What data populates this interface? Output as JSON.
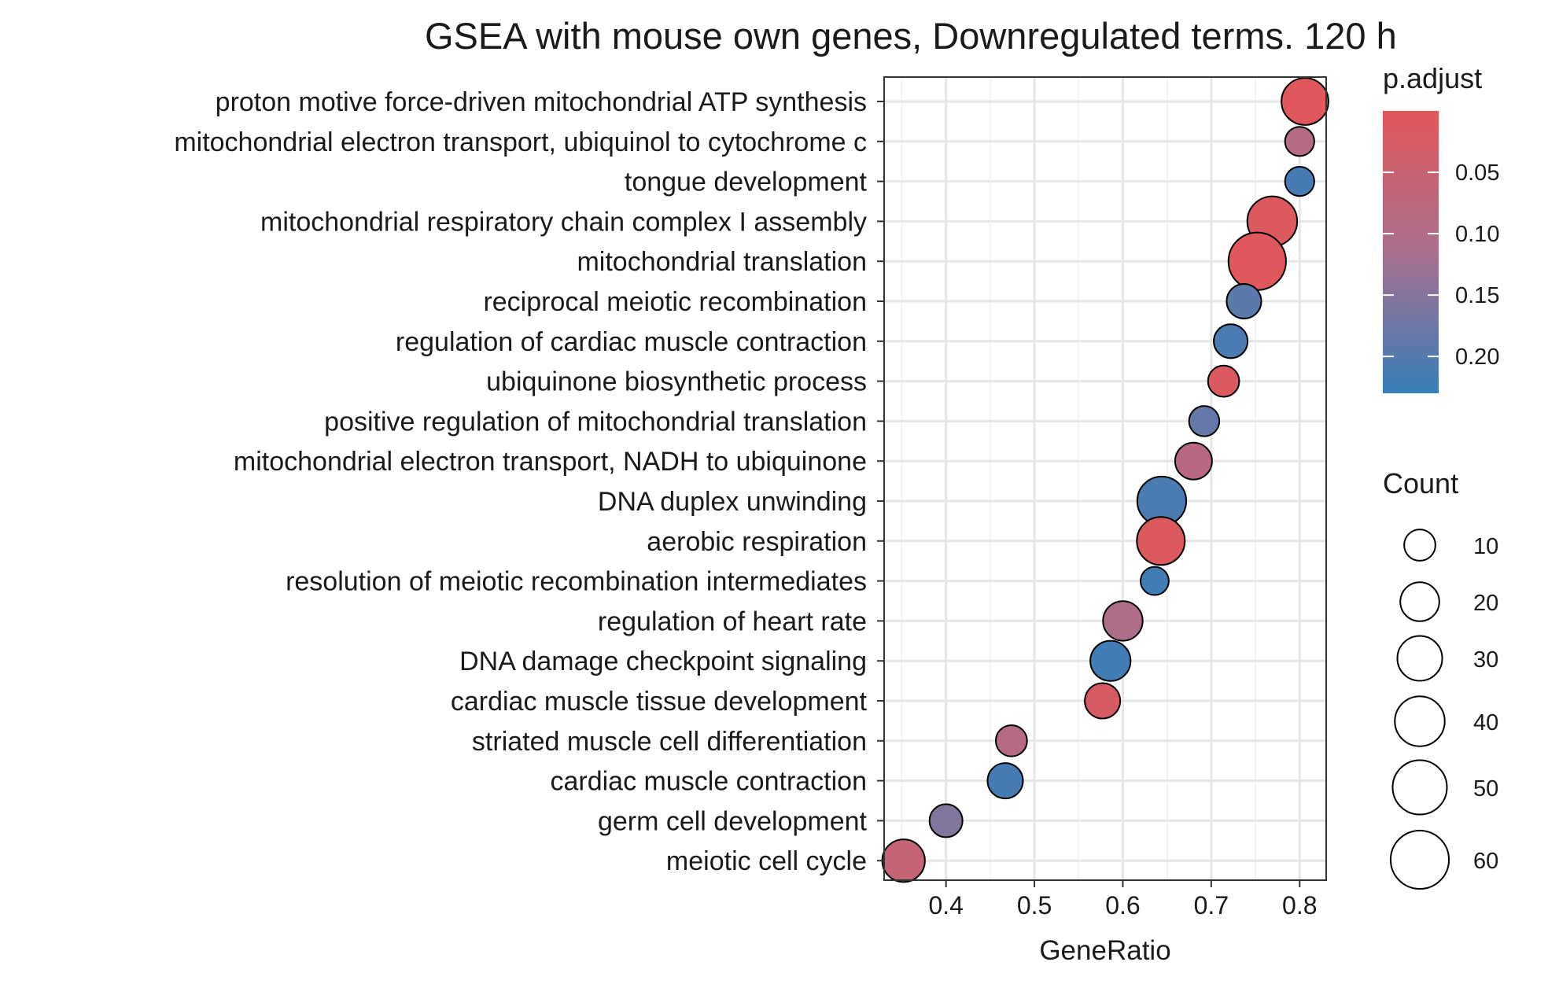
{
  "chart_data": {
    "type": "scatter",
    "title": "GSEA with mouse own genes, Downregulated terms. 120 h",
    "xlabel": "GeneRatio",
    "ylabel": "",
    "xlim": [
      0.33,
      0.83
    ],
    "xticks": [
      0.4,
      0.5,
      0.6,
      0.7,
      0.8
    ],
    "xtick_labels": [
      "0.4",
      "0.5",
      "0.6",
      "0.7",
      "0.8"
    ],
    "grid": true,
    "categories": [
      "proton motive force-driven mitochondrial ATP synthesis",
      "mitochondrial electron transport, ubiquinol to cytochrome c",
      "tongue development",
      "mitochondrial respiratory chain complex I assembly",
      "mitochondrial translation",
      "reciprocal meiotic recombination",
      "regulation of cardiac muscle contraction",
      "ubiquinone biosynthetic process",
      "positive regulation of mitochondrial translation",
      "mitochondrial electron transport, NADH to ubiquinone",
      "DNA duplex unwinding",
      "aerobic respiration",
      "resolution of meiotic recombination intermediates",
      "regulation of heart rate",
      "DNA damage checkpoint signaling",
      "cardiac muscle tissue development",
      "striated muscle cell differentiation",
      "cardiac muscle contraction",
      "germ cell development",
      "meiotic cell cycle"
    ],
    "points": [
      {
        "term": "proton motive force-driven mitochondrial ATP synthesis",
        "gene_ratio": 0.806,
        "count": 34,
        "p_adjust": 0.005
      },
      {
        "term": "mitochondrial electron transport, ubiquinol to cytochrome c",
        "gene_ratio": 0.8,
        "count": 8,
        "p_adjust": 0.09
      },
      {
        "term": "tongue development",
        "gene_ratio": 0.8,
        "count": 8,
        "p_adjust": 0.215
      },
      {
        "term": "mitochondrial respiratory chain complex I assembly",
        "gene_ratio": 0.769,
        "count": 40,
        "p_adjust": 0.01
      },
      {
        "term": "mitochondrial translation",
        "gene_ratio": 0.752,
        "count": 58,
        "p_adjust": 0.005
      },
      {
        "term": "reciprocal meiotic recombination",
        "gene_ratio": 0.737,
        "count": 14,
        "p_adjust": 0.195
      },
      {
        "term": "regulation of cardiac muscle contraction",
        "gene_ratio": 0.722,
        "count": 13,
        "p_adjust": 0.21
      },
      {
        "term": "ubiquinone biosynthetic process",
        "gene_ratio": 0.714,
        "count": 10,
        "p_adjust": 0.015
      },
      {
        "term": "positive regulation of mitochondrial translation",
        "gene_ratio": 0.692,
        "count": 9,
        "p_adjust": 0.185
      },
      {
        "term": "mitochondrial electron transport, NADH to ubiquinone",
        "gene_ratio": 0.68,
        "count": 17,
        "p_adjust": 0.085
      },
      {
        "term": "DNA duplex unwinding",
        "gene_ratio": 0.644,
        "count": 38,
        "p_adjust": 0.21
      },
      {
        "term": "aerobic respiration",
        "gene_ratio": 0.643,
        "count": 36,
        "p_adjust": 0.01
      },
      {
        "term": "resolution of meiotic recombination intermediates",
        "gene_ratio": 0.636,
        "count": 7,
        "p_adjust": 0.22
      },
      {
        "term": "regulation of heart rate",
        "gene_ratio": 0.6,
        "count": 21,
        "p_adjust": 0.105
      },
      {
        "term": "DNA damage checkpoint signaling",
        "gene_ratio": 0.586,
        "count": 22,
        "p_adjust": 0.22
      },
      {
        "term": "cardiac muscle tissue development",
        "gene_ratio": 0.577,
        "count": 15,
        "p_adjust": 0.02
      },
      {
        "term": "striated muscle cell differentiation",
        "gene_ratio": 0.474,
        "count": 10,
        "p_adjust": 0.09
      },
      {
        "term": "cardiac muscle contraction",
        "gene_ratio": 0.467,
        "count": 15,
        "p_adjust": 0.215
      },
      {
        "term": "germ cell development",
        "gene_ratio": 0.4,
        "count": 12,
        "p_adjust": 0.155
      },
      {
        "term": "meiotic cell cycle",
        "gene_ratio": 0.352,
        "count": 26,
        "p_adjust": 0.06
      }
    ],
    "color_legend": {
      "title": "p.adjust",
      "ticks": [
        0.05,
        0.1,
        0.15,
        0.2
      ],
      "tick_labels": [
        "0.05",
        "0.10",
        "0.15",
        "0.20"
      ],
      "range": [
        0.0,
        0.23
      ],
      "low_color": "#E15759",
      "high_color": "#377EB8"
    },
    "size_legend": {
      "title": "Count",
      "values": [
        10,
        20,
        30,
        40,
        50,
        60
      ],
      "labels": [
        "10",
        "20",
        "30",
        "40",
        "50",
        "60"
      ]
    }
  }
}
